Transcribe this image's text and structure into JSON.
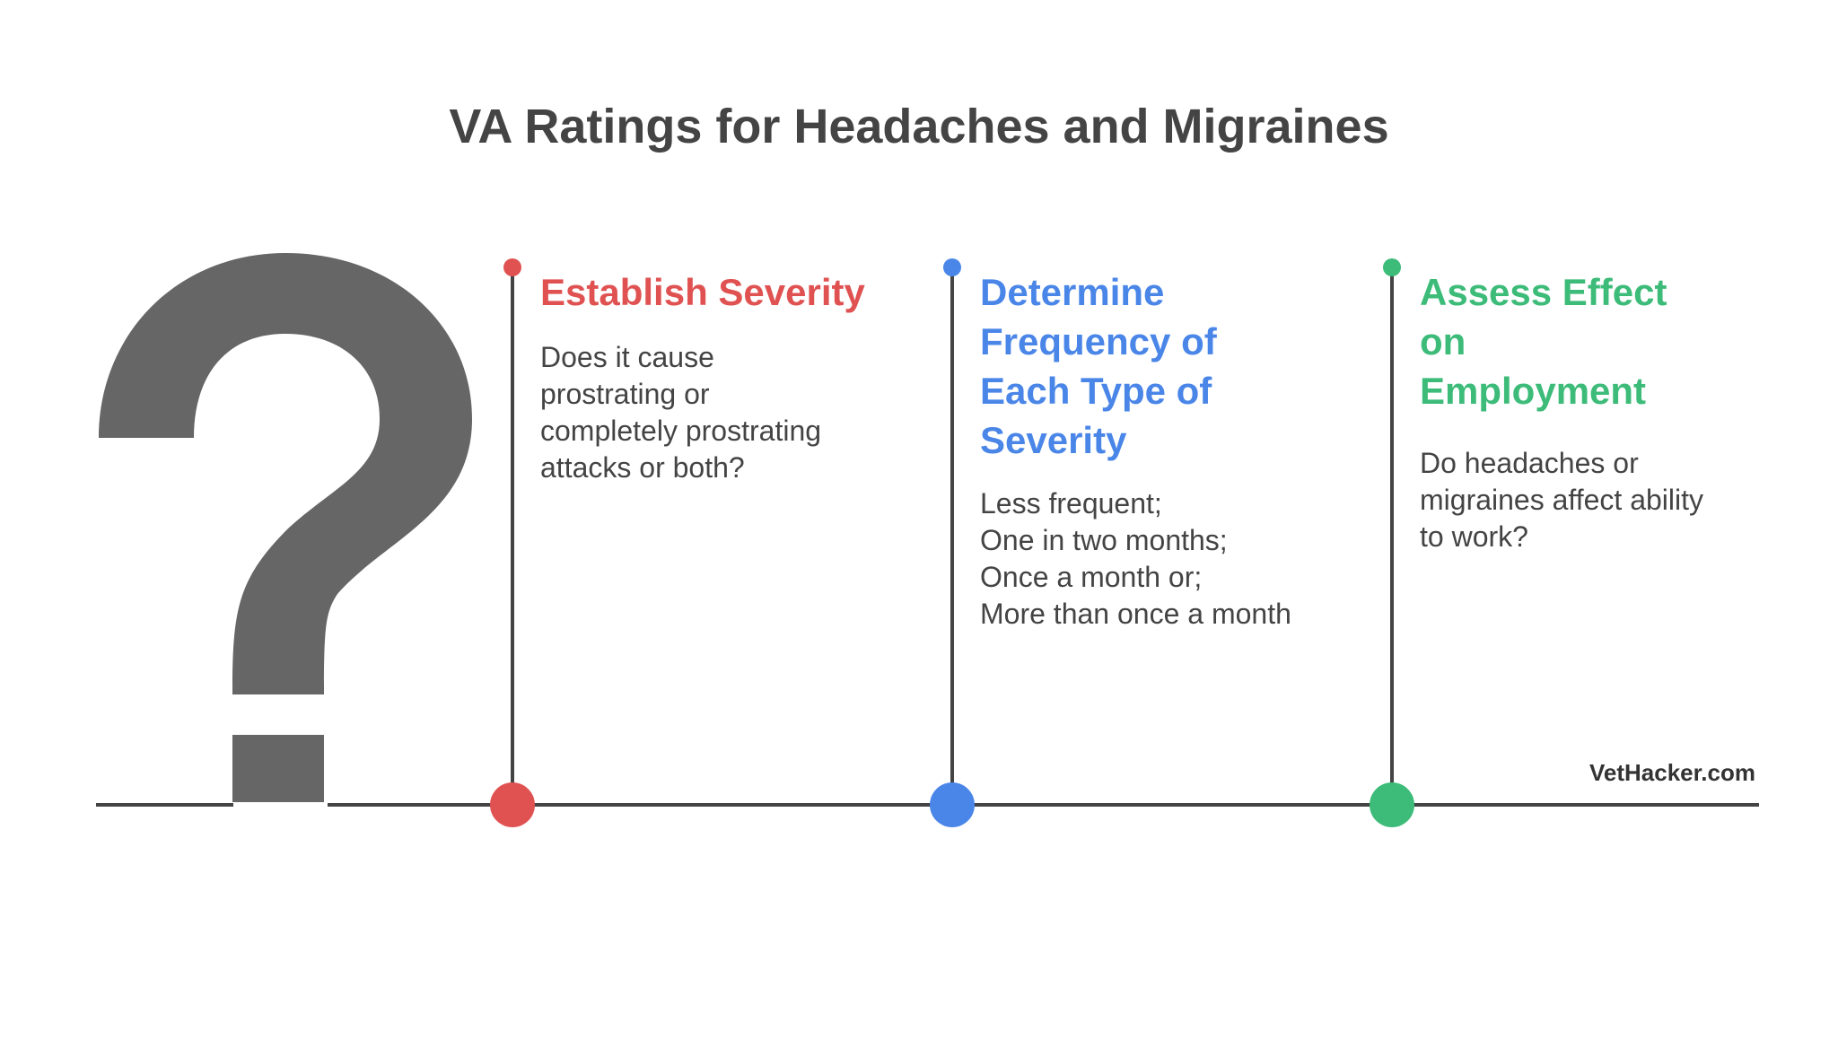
{
  "title": "VA Ratings for Headaches and Migraines",
  "icon": "question-mark-icon",
  "steps": [
    {
      "heading": "Establish Severity",
      "description": "Does it cause\nprostrating or\ncompletely prostrating\nattacks or both?",
      "color": "#e05252"
    },
    {
      "heading": "Determine Frequency of Each Type of Severity",
      "description": "Less frequent;\nOne in two months;\nOnce a month or;\nMore than once a month",
      "color": "#4a86e8"
    },
    {
      "heading": "Assess Effect on Employment",
      "description": "Do headaches or\nmigraines affect ability\nto work?",
      "color": "#3dbb79"
    }
  ],
  "brand": "VetHacker.com",
  "colors": {
    "text": "#444444",
    "icon": "#666666",
    "line": "#444444"
  }
}
